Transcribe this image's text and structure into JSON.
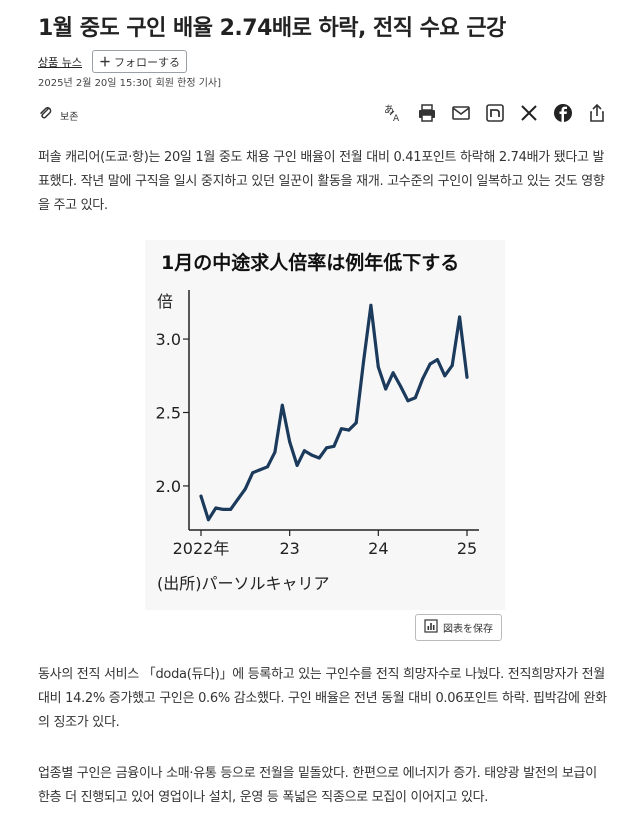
{
  "article": {
    "headline": "1월 중도 구인 배율 2.74배로 하락, 전직 수요 근강",
    "topic": "상품 뉴스",
    "follow_label": "フォローする",
    "date": "2025년 2월 20일 15:30[ 회원 한정 기사]",
    "save_label": "보존",
    "paragraphs": [
      "퍼솔 캐리어(도쿄·항)는 20일 1월 중도 채용 구인 배율이 전월 대비 0.41포인트 하락해 2.74배가 됐다고 발표했다. 작년 말에 구직을 일시 중지하고 있던 일꾼이 활동을 재개. 고수준의 구인이 일복하고 있는 것도 영향을 주고 있다.",
      "동사의 전직 서비스 「doda(듀다)」에 등록하고 있는 구인수를 전직 희망자수로 나눴다. 전직희망자가 전월 대비 14.2% 증가했고 구인은 0.6% 감소했다. 구인 배율은 전년 동월 대비 0.06포인트 하락. 핍박감에 완화의 징조가 있다.",
      "업종별 구인은 금융이나 소매·유통 등으로 전월을 밑돌았다. 한편으로 에너지가 증가. 태양광 발전의 보급이 한층 더 진행되고 있어 영업이나 설치, 운영 등 폭넓은 직종으로 모집이 이어지고 있다."
    ]
  },
  "toolbar_icons": [
    "translate-icon",
    "print-icon",
    "mail-icon",
    "note-icon",
    "x-icon",
    "facebook-icon",
    "share-icon"
  ],
  "chart_save_label": "図表を保存",
  "chart_data": {
    "type": "line",
    "title": "1月の中途求人倍率は例年低下する",
    "ylabel": "倍",
    "source": "(出所)パーソルキャリア",
    "ylim": [
      1.7,
      3.3
    ],
    "yticks": [
      "2.0",
      "2.5",
      "3.0"
    ],
    "xticks": [
      "2022年",
      "23",
      "24",
      "25"
    ],
    "color": "#1b3a5c",
    "series": [
      {
        "values": [
          {
            "x": "2022-01",
            "y": 1.93
          },
          {
            "x": "2022-02",
            "y": 1.77
          },
          {
            "x": "2022-03",
            "y": 1.85
          },
          {
            "x": "2022-04",
            "y": 1.84
          },
          {
            "x": "2022-05",
            "y": 1.84
          },
          {
            "x": "2022-06",
            "y": 1.91
          },
          {
            "x": "2022-07",
            "y": 1.98
          },
          {
            "x": "2022-08",
            "y": 2.09
          },
          {
            "x": "2022-09",
            "y": 2.11
          },
          {
            "x": "2022-10",
            "y": 2.13
          },
          {
            "x": "2022-11",
            "y": 2.23
          },
          {
            "x": "2022-12",
            "y": 2.55
          },
          {
            "x": "2023-01",
            "y": 2.3
          },
          {
            "x": "2023-02",
            "y": 2.14
          },
          {
            "x": "2023-03",
            "y": 2.24
          },
          {
            "x": "2023-04",
            "y": 2.21
          },
          {
            "x": "2023-05",
            "y": 2.19
          },
          {
            "x": "2023-06",
            "y": 2.26
          },
          {
            "x": "2023-07",
            "y": 2.27
          },
          {
            "x": "2023-08",
            "y": 2.39
          },
          {
            "x": "2023-09",
            "y": 2.38
          },
          {
            "x": "2023-10",
            "y": 2.43
          },
          {
            "x": "2023-11",
            "y": 2.85
          },
          {
            "x": "2023-12",
            "y": 3.23
          },
          {
            "x": "2024-01",
            "y": 2.81
          },
          {
            "x": "2024-02",
            "y": 2.66
          },
          {
            "x": "2024-03",
            "y": 2.77
          },
          {
            "x": "2024-04",
            "y": 2.68
          },
          {
            "x": "2024-05",
            "y": 2.58
          },
          {
            "x": "2024-06",
            "y": 2.6
          },
          {
            "x": "2024-07",
            "y": 2.73
          },
          {
            "x": "2024-08",
            "y": 2.83
          },
          {
            "x": "2024-09",
            "y": 2.86
          },
          {
            "x": "2024-10",
            "y": 2.75
          },
          {
            "x": "2024-11",
            "y": 2.82
          },
          {
            "x": "2024-12",
            "y": 3.15
          },
          {
            "x": "2025-01",
            "y": 2.74
          }
        ]
      }
    ]
  }
}
